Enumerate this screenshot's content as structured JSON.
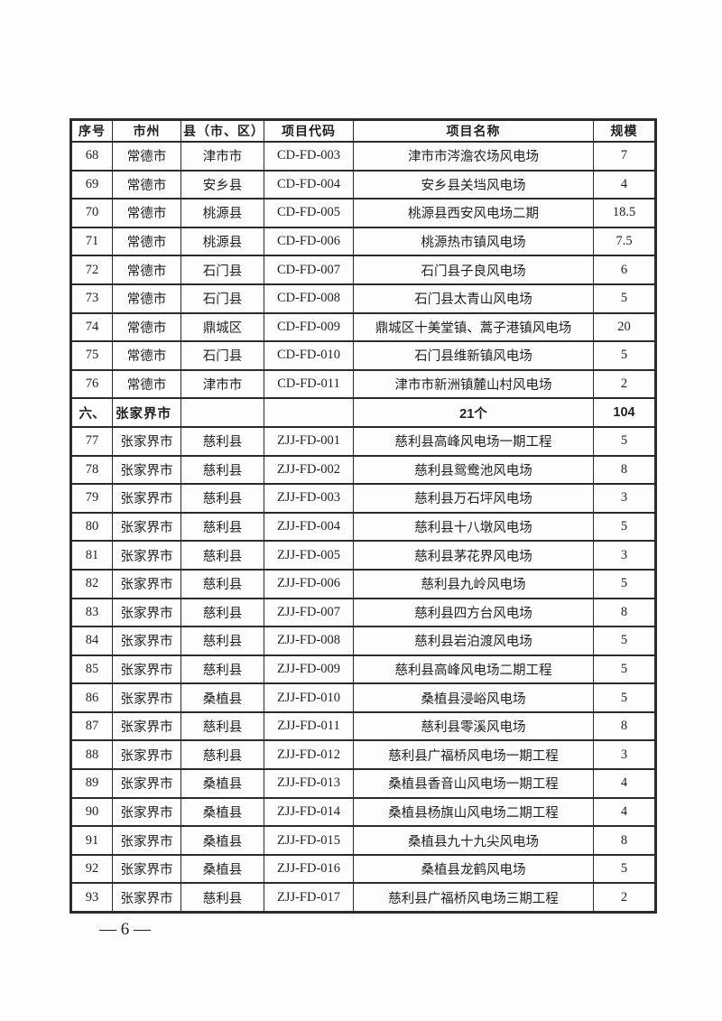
{
  "page": {
    "page_number": "— 6 —"
  },
  "table": {
    "headers": [
      "序号",
      "市州",
      "县（市、区）",
      "项目代码",
      "项目名称",
      "规模"
    ],
    "rows": [
      {
        "type": "data",
        "no": "68",
        "city": "常德市",
        "county": "津市市",
        "code": "CD-FD-003",
        "name": "津市市涔澹农场风电场",
        "scale": "7"
      },
      {
        "type": "data",
        "no": "69",
        "city": "常德市",
        "county": "安乡县",
        "code": "CD-FD-004",
        "name": "安乡县关垱风电场",
        "scale": "4"
      },
      {
        "type": "data",
        "no": "70",
        "city": "常德市",
        "county": "桃源县",
        "code": "CD-FD-005",
        "name": "桃源县西安风电场二期",
        "scale": "18.5"
      },
      {
        "type": "data",
        "no": "71",
        "city": "常德市",
        "county": "桃源县",
        "code": "CD-FD-006",
        "name": "桃源热市镇风电场",
        "scale": "7.5"
      },
      {
        "type": "data",
        "no": "72",
        "city": "常德市",
        "county": "石门县",
        "code": "CD-FD-007",
        "name": "石门县子良风电场",
        "scale": "6"
      },
      {
        "type": "data",
        "no": "73",
        "city": "常德市",
        "county": "石门县",
        "code": "CD-FD-008",
        "name": "石门县太青山风电场",
        "scale": "5"
      },
      {
        "type": "data",
        "no": "74",
        "city": "常德市",
        "county": "鼎城区",
        "code": "CD-FD-009",
        "name": "鼎城区十美堂镇、蒿子港镇风电场",
        "scale": "20"
      },
      {
        "type": "data",
        "no": "75",
        "city": "常德市",
        "county": "石门县",
        "code": "CD-FD-010",
        "name": "石门县维新镇风电场",
        "scale": "5"
      },
      {
        "type": "data",
        "no": "76",
        "city": "常德市",
        "county": "津市市",
        "code": "CD-FD-011",
        "name": "津市市新洲镇麓山村风电场",
        "scale": "2"
      },
      {
        "type": "section",
        "no": "六、",
        "city": "张家界市",
        "county": "",
        "code": "",
        "name": "21个",
        "scale": "104"
      },
      {
        "type": "data",
        "no": "77",
        "city": "张家界市",
        "county": "慈利县",
        "code": "ZJJ-FD-001",
        "name": "慈利县高峰风电场一期工程",
        "scale": "5"
      },
      {
        "type": "data",
        "no": "78",
        "city": "张家界市",
        "county": "慈利县",
        "code": "ZJJ-FD-002",
        "name": "慈利县鸳鸯池风电场",
        "scale": "8"
      },
      {
        "type": "data",
        "no": "79",
        "city": "张家界市",
        "county": "慈利县",
        "code": "ZJJ-FD-003",
        "name": "慈利县万石坪风电场",
        "scale": "3"
      },
      {
        "type": "data",
        "no": "80",
        "city": "张家界市",
        "county": "慈利县",
        "code": "ZJJ-FD-004",
        "name": "慈利县十八墩风电场",
        "scale": "5"
      },
      {
        "type": "data",
        "no": "81",
        "city": "张家界市",
        "county": "慈利县",
        "code": "ZJJ-FD-005",
        "name": "慈利县茅花界风电场",
        "scale": "3"
      },
      {
        "type": "data",
        "no": "82",
        "city": "张家界市",
        "county": "慈利县",
        "code": "ZJJ-FD-006",
        "name": "慈利县九岭风电场",
        "scale": "5"
      },
      {
        "type": "data",
        "no": "83",
        "city": "张家界市",
        "county": "慈利县",
        "code": "ZJJ-FD-007",
        "name": "慈利县四方台风电场",
        "scale": "8"
      },
      {
        "type": "data",
        "no": "84",
        "city": "张家界市",
        "county": "慈利县",
        "code": "ZJJ-FD-008",
        "name": "慈利县岩泊渡风电场",
        "scale": "5"
      },
      {
        "type": "data",
        "no": "85",
        "city": "张家界市",
        "county": "慈利县",
        "code": "ZJJ-FD-009",
        "name": "慈利县高峰风电场二期工程",
        "scale": "5"
      },
      {
        "type": "data",
        "no": "86",
        "city": "张家界市",
        "county": "桑植县",
        "code": "ZJJ-FD-010",
        "name": "桑植县浸峪风电场",
        "scale": "5"
      },
      {
        "type": "data",
        "no": "87",
        "city": "张家界市",
        "county": "慈利县",
        "code": "ZJJ-FD-011",
        "name": "慈利县零溪风电场",
        "scale": "8"
      },
      {
        "type": "data",
        "no": "88",
        "city": "张家界市",
        "county": "慈利县",
        "code": "ZJJ-FD-012",
        "name": "慈利县广福桥风电场一期工程",
        "scale": "3"
      },
      {
        "type": "data",
        "no": "89",
        "city": "张家界市",
        "county": "桑植县",
        "code": "ZJJ-FD-013",
        "name": "桑植县香音山风电场一期工程",
        "scale": "4"
      },
      {
        "type": "data",
        "no": "90",
        "city": "张家界市",
        "county": "桑植县",
        "code": "ZJJ-FD-014",
        "name": "桑植县杨旗山风电场二期工程",
        "scale": "4"
      },
      {
        "type": "data",
        "no": "91",
        "city": "张家界市",
        "county": "桑植县",
        "code": "ZJJ-FD-015",
        "name": "桑植县九十九尖风电场",
        "scale": "8"
      },
      {
        "type": "data",
        "no": "92",
        "city": "张家界市",
        "county": "桑植县",
        "code": "ZJJ-FD-016",
        "name": "桑植县龙鹤风电场",
        "scale": "5"
      },
      {
        "type": "data",
        "no": "93",
        "city": "张家界市",
        "county": "慈利县",
        "code": "ZJJ-FD-017",
        "name": "慈利县广福桥风电场三期工程",
        "scale": "2"
      }
    ]
  }
}
